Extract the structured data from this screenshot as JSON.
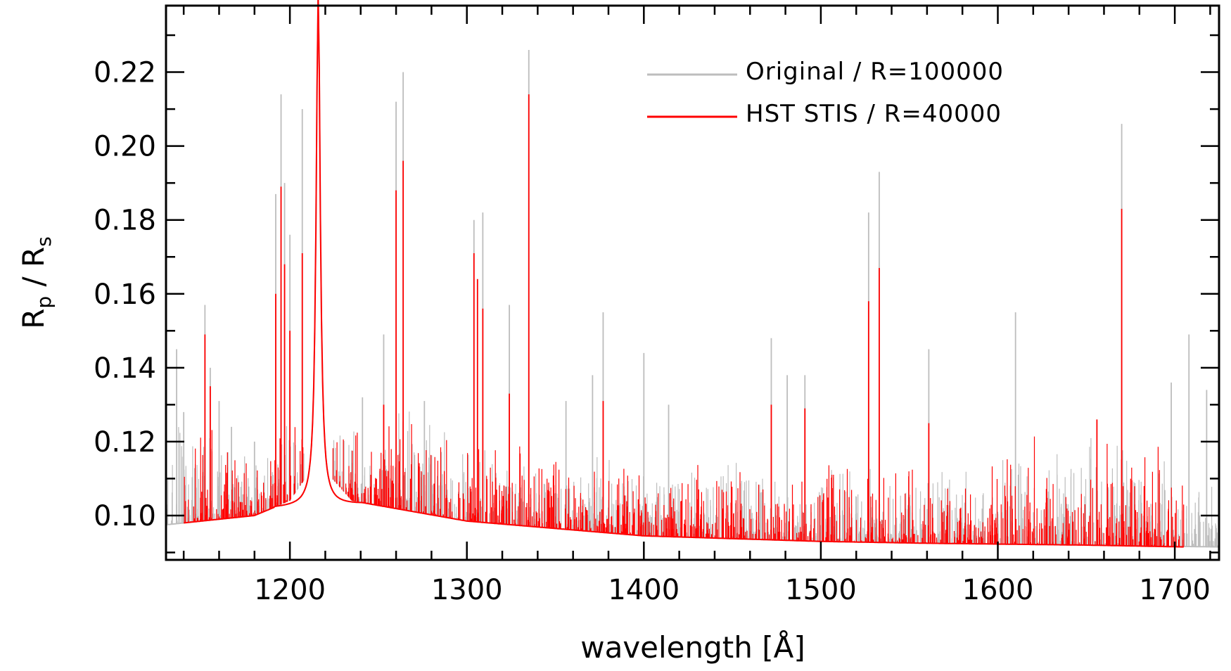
{
  "chart_data": {
    "type": "line",
    "title": "",
    "xlabel": "wavelength [Å]",
    "ylabel": {
      "base1": "R",
      "sub1": "p",
      "sep": " / ",
      "base2": "R",
      "sub2": "s"
    },
    "xlim": [
      1130,
      1725
    ],
    "ylim": [
      0.088,
      0.238
    ],
    "x_ticks": [
      1200,
      1300,
      1400,
      1500,
      1600,
      1700
    ],
    "y_ticks": [
      0.1,
      0.12,
      0.14,
      0.16,
      0.18,
      0.2,
      0.22
    ],
    "y_tick_labels": [
      "0.10",
      "0.12",
      "0.14",
      "0.16",
      "0.18",
      "0.20",
      "0.22"
    ],
    "legend_position": "top-right",
    "colors": {
      "original": "#bdbdbd",
      "stis": "#ff0000",
      "axis": "#000000"
    },
    "series": [
      {
        "name": "Original / R=100000",
        "color": "#bdbdbd",
        "continuum": [
          [
            1130,
            0.0975
          ],
          [
            1180,
            0.1
          ],
          [
            1200,
            0.104
          ],
          [
            1210,
            0.111
          ],
          [
            1216,
            0.237
          ],
          [
            1222,
            0.111
          ],
          [
            1235,
            0.104
          ],
          [
            1300,
            0.0985
          ],
          [
            1400,
            0.0945
          ],
          [
            1500,
            0.093
          ],
          [
            1560,
            0.0925
          ],
          [
            1650,
            0.092
          ],
          [
            1725,
            0.0915
          ]
        ],
        "peaks": [
          [
            1136,
            0.145
          ],
          [
            1140,
            0.128
          ],
          [
            1152,
            0.157
          ],
          [
            1155,
            0.14
          ],
          [
            1160,
            0.131
          ],
          [
            1167,
            0.124
          ],
          [
            1180,
            0.12
          ],
          [
            1192,
            0.187
          ],
          [
            1195,
            0.214
          ],
          [
            1197,
            0.19
          ],
          [
            1200,
            0.176
          ],
          [
            1207,
            0.21
          ],
          [
            1241,
            0.132
          ],
          [
            1253,
            0.149
          ],
          [
            1260,
            0.212
          ],
          [
            1264,
            0.22
          ],
          [
            1276,
            0.131
          ],
          [
            1304,
            0.18
          ],
          [
            1309,
            0.182
          ],
          [
            1324,
            0.157
          ],
          [
            1335,
            0.226
          ],
          [
            1356,
            0.131
          ],
          [
            1371,
            0.138
          ],
          [
            1377,
            0.155
          ],
          [
            1400,
            0.144
          ],
          [
            1414,
            0.13
          ],
          [
            1472,
            0.148
          ],
          [
            1481,
            0.138
          ],
          [
            1491,
            0.138
          ],
          [
            1527,
            0.182
          ],
          [
            1533,
            0.193
          ],
          [
            1561,
            0.145
          ],
          [
            1610,
            0.155
          ],
          [
            1670,
            0.206
          ],
          [
            1698,
            0.136
          ],
          [
            1708,
            0.149
          ],
          [
            1718,
            0.134
          ]
        ]
      },
      {
        "name": "HST STIS / R=40000",
        "color": "#ff0000",
        "continuum": [
          [
            1140,
            0.098
          ],
          [
            1180,
            0.1
          ],
          [
            1200,
            0.104
          ],
          [
            1210,
            0.111
          ],
          [
            1216,
            0.237
          ],
          [
            1222,
            0.111
          ],
          [
            1235,
            0.104
          ],
          [
            1300,
            0.0985
          ],
          [
            1400,
            0.0945
          ],
          [
            1500,
            0.093
          ],
          [
            1560,
            0.0925
          ],
          [
            1650,
            0.092
          ],
          [
            1705,
            0.0915
          ]
        ],
        "peaks": [
          [
            1152,
            0.149
          ],
          [
            1155,
            0.135
          ],
          [
            1192,
            0.16
          ],
          [
            1195,
            0.189
          ],
          [
            1197,
            0.168
          ],
          [
            1200,
            0.15
          ],
          [
            1207,
            0.171
          ],
          [
            1253,
            0.13
          ],
          [
            1260,
            0.188
          ],
          [
            1264,
            0.196
          ],
          [
            1304,
            0.171
          ],
          [
            1306,
            0.164
          ],
          [
            1309,
            0.156
          ],
          [
            1324,
            0.133
          ],
          [
            1335,
            0.214
          ],
          [
            1377,
            0.131
          ],
          [
            1472,
            0.13
          ],
          [
            1491,
            0.129
          ],
          [
            1527,
            0.158
          ],
          [
            1533,
            0.167
          ],
          [
            1561,
            0.125
          ],
          [
            1656,
            0.126
          ],
          [
            1670,
            0.183
          ]
        ]
      }
    ]
  }
}
